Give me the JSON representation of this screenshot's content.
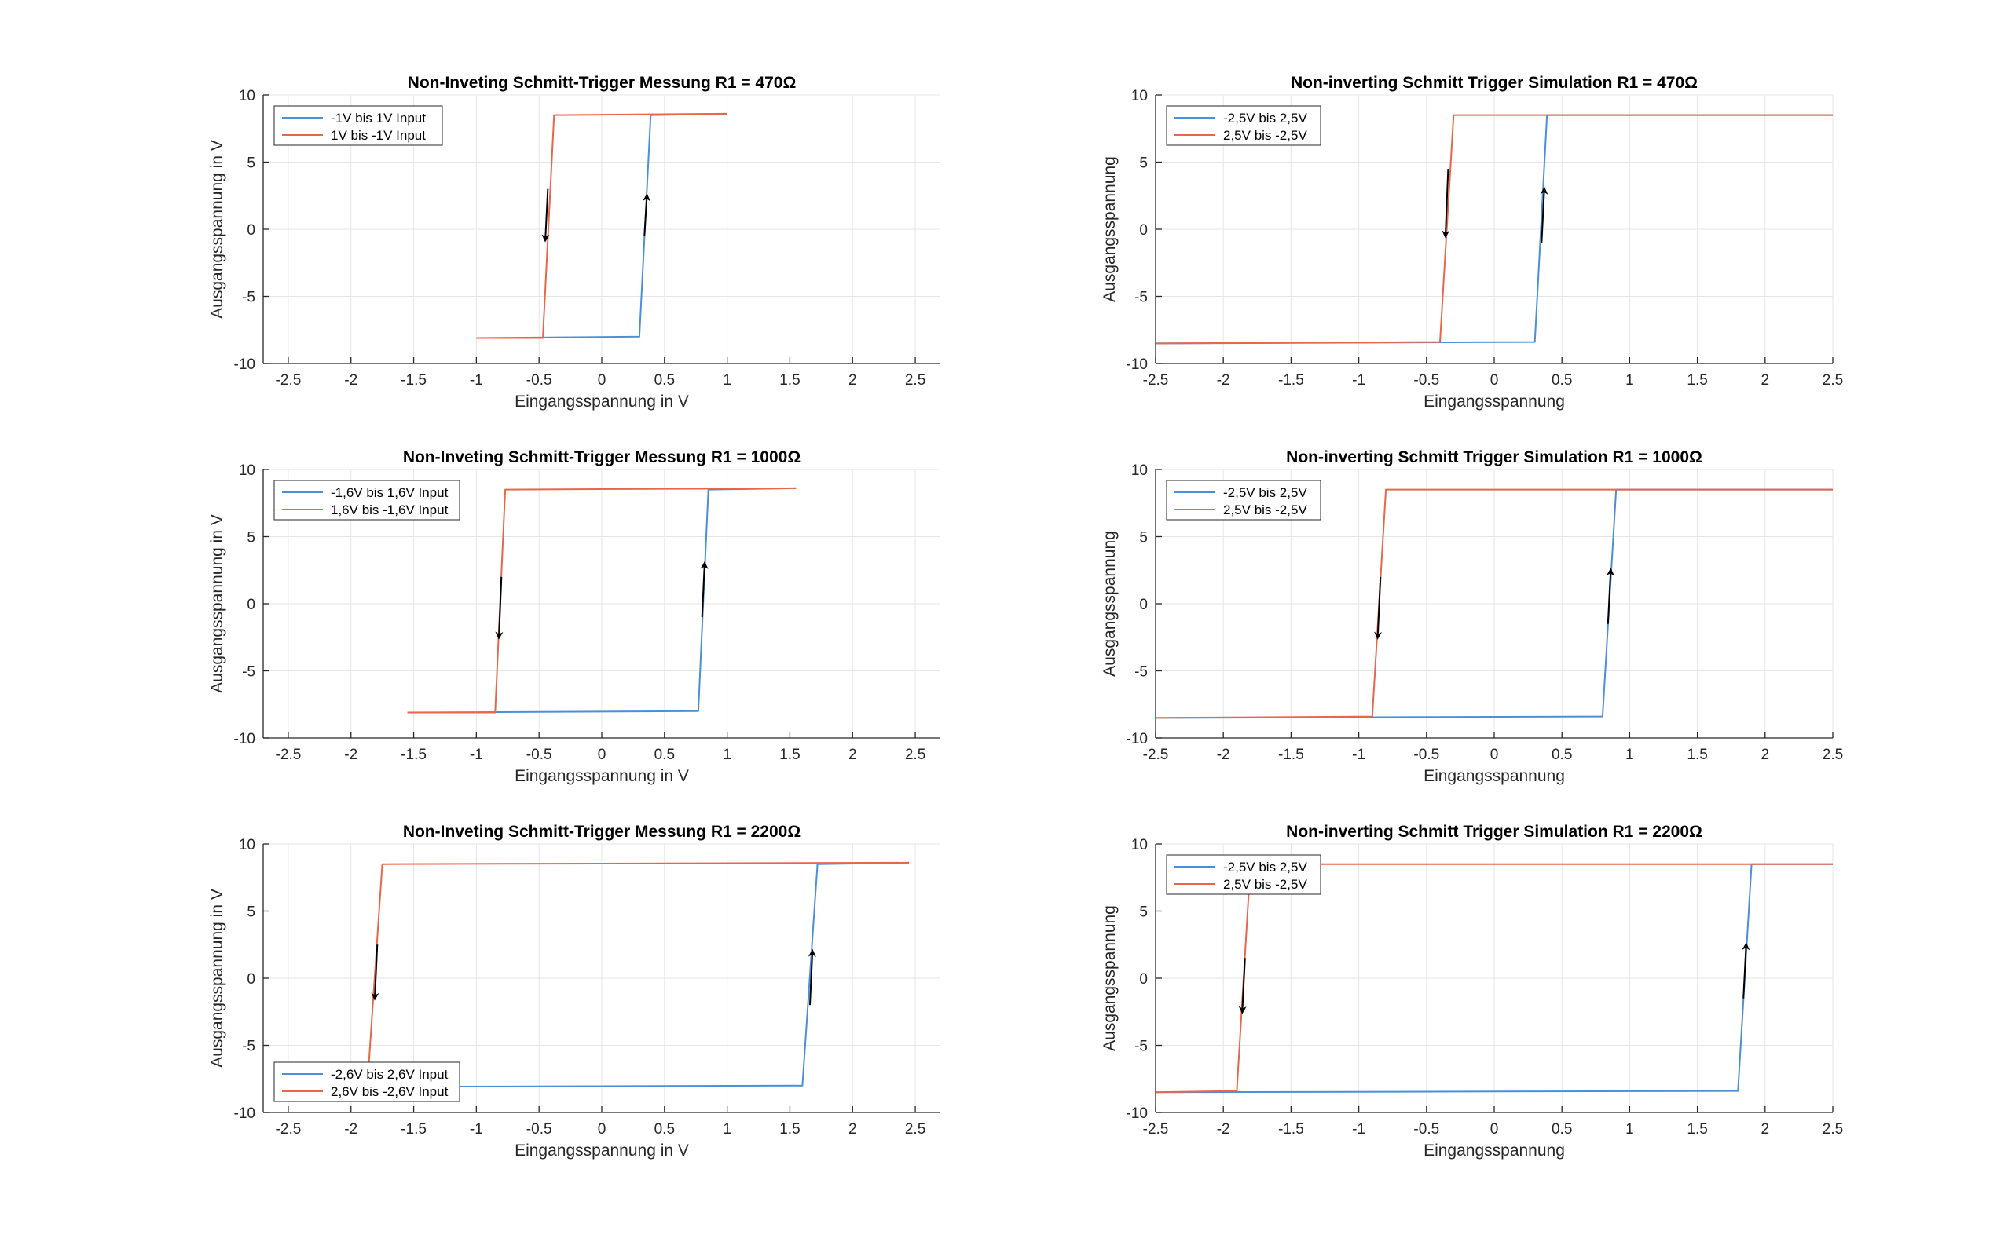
{
  "figure": {
    "colors": {
      "up": "#4A90D9",
      "down": "#E8674A",
      "arrow": "#000000",
      "grid": "#E6E6E6",
      "axis": "#262626"
    }
  },
  "chart_data": [
    {
      "type": "line",
      "title": "Non-Inveting Schmitt-Trigger Messung R1 = 470Ω",
      "xlabel": "Eingangsspannung in V",
      "ylabel": "Ausgangsspannung in V",
      "xlim": [
        -2.7,
        2.7
      ],
      "ylim": [
        -10,
        10
      ],
      "xticks": [
        -2.5,
        -2,
        -1.5,
        -1,
        -0.5,
        0,
        0.5,
        1,
        1.5,
        2,
        2.5
      ],
      "xtick_labels": [
        "-2.5",
        "-2",
        "-1.5",
        "-1",
        "-0.5",
        "0",
        "0.5",
        "1",
        "1.5",
        "2",
        "2.5"
      ],
      "yticks": [
        -10,
        -5,
        0,
        5,
        10
      ],
      "ytick_labels": [
        "-10",
        "-5",
        "0",
        "5",
        "10"
      ],
      "grid": true,
      "legend_position": "top-left",
      "series": [
        {
          "name": "-1V bis 1V Input",
          "color": "#4A90D9",
          "x": [
            -1,
            0.3,
            0.39,
            1
          ],
          "y": [
            -8.1,
            -8.0,
            8.5,
            8.6
          ]
        },
        {
          "name": "1V bis -1V Input",
          "color": "#E8674A",
          "x": [
            1,
            -0.38,
            -0.47,
            -1
          ],
          "y": [
            8.6,
            8.5,
            -8.1,
            -8.1
          ]
        }
      ],
      "arrows": [
        {
          "x": [
            0.34,
            0.36
          ],
          "y": [
            -0.5,
            2.5
          ]
        },
        {
          "x": [
            -0.43,
            -0.45
          ],
          "y": [
            3.0,
            -0.8
          ]
        }
      ]
    },
    {
      "type": "line",
      "title": "Non-inverting Schmitt Trigger Simulation R1 = 470Ω",
      "xlabel": "Eingangsspannung",
      "ylabel": "Ausgangsspannung",
      "xlim": [
        -2.5,
        2.5
      ],
      "ylim": [
        -10,
        10
      ],
      "xticks": [
        -2.5,
        -2,
        -1.5,
        -1,
        -0.5,
        0,
        0.5,
        1,
        1.5,
        2,
        2.5
      ],
      "xtick_labels": [
        "-2.5",
        "-2",
        "-1.5",
        "-1",
        "-0.5",
        "0",
        "0.5",
        "1",
        "1.5",
        "2",
        "2.5"
      ],
      "yticks": [
        -10,
        -5,
        0,
        5,
        10
      ],
      "ytick_labels": [
        "-10",
        "-5",
        "0",
        "5",
        "10"
      ],
      "grid": true,
      "legend_position": "top-left",
      "series": [
        {
          "name": "-2,5V bis 2,5V",
          "color": "#4A90D9",
          "x": [
            -2.5,
            0.3,
            0.39,
            2.5
          ],
          "y": [
            -8.5,
            -8.4,
            8.5,
            8.5
          ]
        },
        {
          "name": "2,5V bis -2,5V",
          "color": "#E8674A",
          "x": [
            2.5,
            -0.3,
            -0.4,
            -2.5
          ],
          "y": [
            8.5,
            8.5,
            -8.4,
            -8.5
          ]
        }
      ],
      "arrows": [
        {
          "x": [
            0.35,
            0.37
          ],
          "y": [
            -1.0,
            3.0
          ]
        },
        {
          "x": [
            -0.34,
            -0.36
          ],
          "y": [
            4.5,
            -0.5
          ]
        }
      ]
    },
    {
      "type": "line",
      "title": "Non-Inveting Schmitt-Trigger Messung R1 = 1000Ω",
      "xlabel": "Eingangsspannung in V",
      "ylabel": "Ausgangsspannung in V",
      "xlim": [
        -2.7,
        2.7
      ],
      "ylim": [
        -10,
        10
      ],
      "xticks": [
        -2.5,
        -2,
        -1.5,
        -1,
        -0.5,
        0,
        0.5,
        1,
        1.5,
        2,
        2.5
      ],
      "xtick_labels": [
        "-2.5",
        "-2",
        "-1.5",
        "-1",
        "-0.5",
        "0",
        "0.5",
        "1",
        "1.5",
        "2",
        "2.5"
      ],
      "yticks": [
        -10,
        -5,
        0,
        5,
        10
      ],
      "ytick_labels": [
        "-10",
        "-5",
        "0",
        "5",
        "10"
      ],
      "grid": true,
      "legend_position": "top-left",
      "series": [
        {
          "name": "-1,6V bis 1,6V Input",
          "color": "#4A90D9",
          "x": [
            -1.55,
            0.77,
            0.85,
            1.55
          ],
          "y": [
            -8.1,
            -8.0,
            8.5,
            8.6
          ]
        },
        {
          "name": "1,6V bis -1,6V Input",
          "color": "#E8674A",
          "x": [
            1.55,
            -0.77,
            -0.85,
            -1.55
          ],
          "y": [
            8.6,
            8.5,
            -8.1,
            -8.1
          ]
        }
      ],
      "arrows": [
        {
          "x": [
            0.8,
            0.82
          ],
          "y": [
            -1.0,
            3.0
          ]
        },
        {
          "x": [
            -0.8,
            -0.82
          ],
          "y": [
            2.0,
            -2.5
          ]
        }
      ]
    },
    {
      "type": "line",
      "title": "Non-inverting Schmitt Trigger Simulation R1 = 1000Ω",
      "xlabel": "Eingangsspannung",
      "ylabel": "Ausgangsspannung",
      "xlim": [
        -2.5,
        2.5
      ],
      "ylim": [
        -10,
        10
      ],
      "xticks": [
        -2.5,
        -2,
        -1.5,
        -1,
        -0.5,
        0,
        0.5,
        1,
        1.5,
        2,
        2.5
      ],
      "xtick_labels": [
        "-2.5",
        "-2",
        "-1.5",
        "-1",
        "-0.5",
        "0",
        "0.5",
        "1",
        "1.5",
        "2",
        "2.5"
      ],
      "yticks": [
        -10,
        -5,
        0,
        5,
        10
      ],
      "ytick_labels": [
        "-10",
        "-5",
        "0",
        "5",
        "10"
      ],
      "grid": true,
      "legend_position": "top-left",
      "series": [
        {
          "name": "-2,5V bis 2,5V",
          "color": "#4A90D9",
          "x": [
            -2.5,
            0.8,
            0.9,
            2.5
          ],
          "y": [
            -8.5,
            -8.4,
            8.5,
            8.5
          ]
        },
        {
          "name": "2,5V bis -2,5V",
          "color": "#E8674A",
          "x": [
            2.5,
            -0.8,
            -0.9,
            -2.5
          ],
          "y": [
            8.5,
            8.5,
            -8.4,
            -8.5
          ]
        }
      ],
      "arrows": [
        {
          "x": [
            0.84,
            0.86
          ],
          "y": [
            -1.5,
            2.5
          ]
        },
        {
          "x": [
            -0.84,
            -0.86
          ],
          "y": [
            2.0,
            -2.5
          ]
        }
      ]
    },
    {
      "type": "line",
      "title": "Non-Inveting Schmitt-Trigger Messung R1 = 2200Ω",
      "xlabel": "Eingangsspannung in V",
      "ylabel": "Ausgangsspannung in V",
      "xlim": [
        -2.7,
        2.7
      ],
      "ylim": [
        -10,
        10
      ],
      "xticks": [
        -2.5,
        -2,
        -1.5,
        -1,
        -0.5,
        0,
        0.5,
        1,
        1.5,
        2,
        2.5
      ],
      "xtick_labels": [
        "-2.5",
        "-2",
        "-1.5",
        "-1",
        "-0.5",
        "0",
        "0.5",
        "1",
        "1.5",
        "2",
        "2.5"
      ],
      "yticks": [
        -10,
        -5,
        0,
        5,
        10
      ],
      "ytick_labels": [
        "-10",
        "-5",
        "0",
        "5",
        "10"
      ],
      "grid": true,
      "legend_position": "bottom-left",
      "series": [
        {
          "name": "-2,6V bis 2,6V Input",
          "color": "#4A90D9",
          "x": [
            -2.45,
            1.6,
            1.72,
            2.45
          ],
          "y": [
            -8.1,
            -8.0,
            8.5,
            8.6
          ]
        },
        {
          "name": "2,6V bis -2,6V Input",
          "color": "#E8674A",
          "x": [
            2.45,
            -1.75,
            -1.87,
            -2.45
          ],
          "y": [
            8.6,
            8.5,
            -8.1,
            -8.1
          ]
        }
      ],
      "arrows": [
        {
          "x": [
            1.66,
            1.68
          ],
          "y": [
            -2.0,
            2.0
          ]
        },
        {
          "x": [
            -1.79,
            -1.81
          ],
          "y": [
            2.5,
            -1.5
          ]
        }
      ]
    },
    {
      "type": "line",
      "title": "Non-inverting Schmitt Trigger Simulation R1 = 2200Ω",
      "xlabel": "Eingangsspannung",
      "ylabel": "Ausgangsspannung",
      "xlim": [
        -2.5,
        2.5
      ],
      "ylim": [
        -10,
        10
      ],
      "xticks": [
        -2.5,
        -2,
        -1.5,
        -1,
        -0.5,
        0,
        0.5,
        1,
        1.5,
        2,
        2.5
      ],
      "xtick_labels": [
        "-2.5",
        "-2",
        "-1.5",
        "-1",
        "-0.5",
        "0",
        "0.5",
        "1",
        "1.5",
        "2",
        "2.5"
      ],
      "yticks": [
        -10,
        -5,
        0,
        5,
        10
      ],
      "ytick_labels": [
        "-10",
        "-5",
        "0",
        "5",
        "10"
      ],
      "grid": true,
      "legend_position": "top-left",
      "series": [
        {
          "name": "-2,5V bis 2,5V",
          "color": "#4A90D9",
          "x": [
            -2.5,
            1.8,
            1.9,
            2.5
          ],
          "y": [
            -8.5,
            -8.4,
            8.5,
            8.5
          ]
        },
        {
          "name": "2,5V bis -2,5V",
          "color": "#E8674A",
          "x": [
            2.5,
            -1.8,
            -1.9,
            -2.5
          ],
          "y": [
            8.5,
            8.5,
            -8.4,
            -8.5
          ]
        }
      ],
      "arrows": [
        {
          "x": [
            1.84,
            1.86
          ],
          "y": [
            -1.5,
            2.5
          ]
        },
        {
          "x": [
            -1.84,
            -1.86
          ],
          "y": [
            1.5,
            -2.5
          ]
        }
      ]
    }
  ]
}
